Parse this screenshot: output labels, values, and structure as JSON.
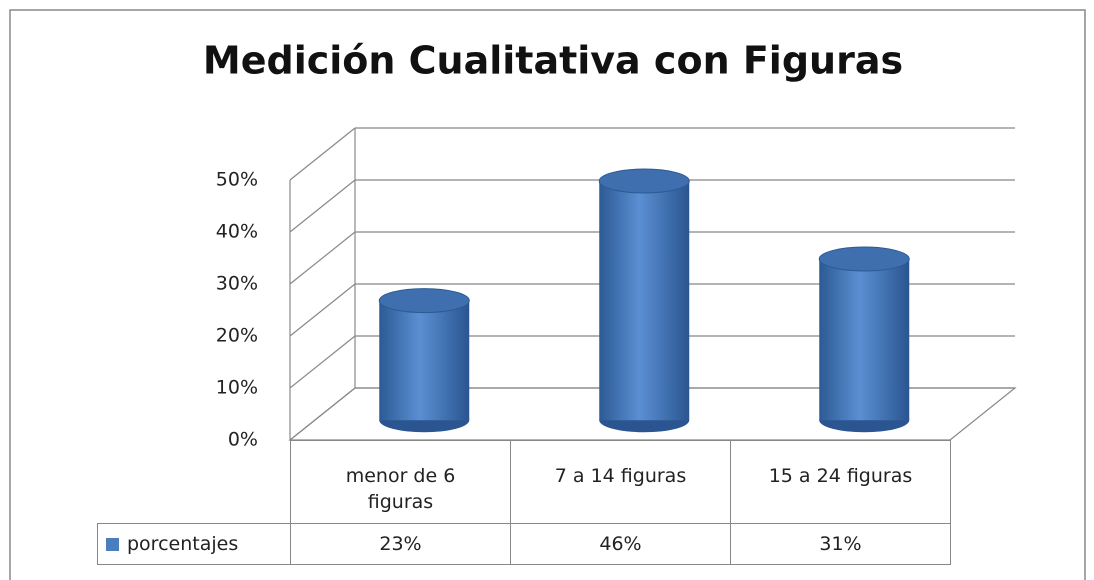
{
  "chart_data": {
    "type": "bar3d",
    "title": "Medición Cualitativa con Figuras",
    "categories": [
      "menor de 6 figuras",
      "7 a 14 figuras",
      "15 a 24 figuras"
    ],
    "series": [
      {
        "name": "porcentajes",
        "color": "#4a7ebf",
        "values": [
          23,
          46,
          31
        ],
        "value_labels": [
          "23%",
          "46%",
          "31%"
        ]
      }
    ],
    "ylim": [
      0,
      50
    ],
    "yticks": [
      {
        "value": 0,
        "label": "0%"
      },
      {
        "value": 10,
        "label": "10%"
      },
      {
        "value": 20,
        "label": "20%"
      },
      {
        "value": 30,
        "label": "30%"
      },
      {
        "value": 40,
        "label": "40%"
      },
      {
        "value": 50,
        "label": "50%"
      }
    ],
    "grid": true,
    "legend": "table"
  }
}
